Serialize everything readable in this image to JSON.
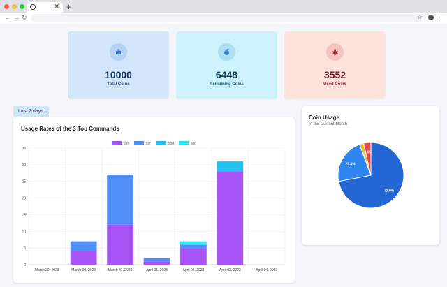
{
  "colors": {
    "purple": "#a855f7",
    "blue": "#4f8ff7",
    "cyan": "#22c3f0",
    "aqua": "#2ee8f5",
    "pie_blue": "#2467d4",
    "pie_light": "#2f86f0",
    "pie_yellow": "#f5b731",
    "pie_red": "#ef4444"
  },
  "browser": {
    "tab_icon": "globe-icon"
  },
  "stats": [
    {
      "value": "10000",
      "label": "Total Coins",
      "icon": "android-icon"
    },
    {
      "value": "6448",
      "label": "Remaining Coins",
      "icon": "apple-icon"
    },
    {
      "value": "3552",
      "label": "Used Coins",
      "icon": "bug-icon"
    }
  ],
  "filter": {
    "label": "Last 7 days"
  },
  "usage_panel": {
    "title": "Usage Rates of the 3 Top Commands"
  },
  "coin_panel": {
    "title": "Coin Usage",
    "subtitle": "In the Current Month"
  },
  "chart_data": [
    {
      "type": "bar",
      "title": "Usage Rates of the 3 Top Commands",
      "stacked": true,
      "categories": [
        "March 29, 2023",
        "March 30, 2023",
        "March 31, 2023",
        "April 01, 2023",
        "April 02, 2023",
        "April 03, 2023",
        "April 04, 2023"
      ],
      "series": [
        {
          "name": "gen",
          "values": [
            0,
            4,
            12,
            1,
            5,
            28,
            0
          ]
        },
        {
          "name": "cor",
          "values": [
            0,
            3,
            15,
            1,
            1,
            0,
            0
          ]
        },
        {
          "name": "cod",
          "values": [
            0,
            0,
            0,
            0,
            0,
            3,
            0
          ]
        },
        {
          "name": "sol",
          "values": [
            0,
            0,
            0,
            0,
            1,
            0,
            0
          ]
        }
      ],
      "ylim": [
        0,
        35
      ],
      "yticks": [
        0,
        5,
        10,
        15,
        20,
        25,
        30,
        35
      ],
      "legend": "top-center"
    },
    {
      "type": "pie",
      "title": "Coin Usage",
      "slices": [
        {
          "value": 72.0,
          "label": "72.0%"
        },
        {
          "value": 22.4,
          "label": "22.4%"
        },
        {
          "value": 2.0,
          "label": ""
        },
        {
          "value": 3.6,
          "label": "3.6%"
        }
      ]
    }
  ]
}
